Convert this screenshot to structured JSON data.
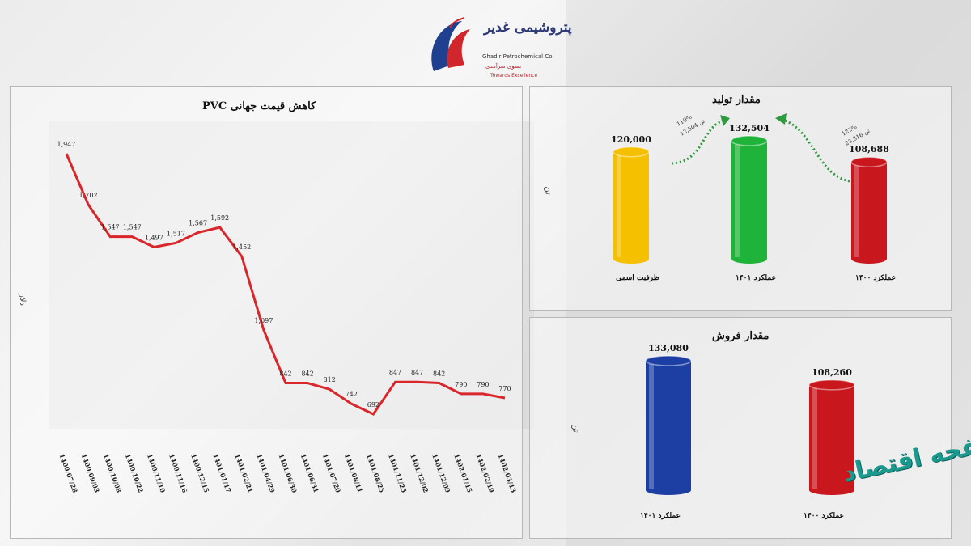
{
  "logo": {
    "name_fa": "پتروشیمی غدیر",
    "name_en": "Ghadir Petrochemical Co.",
    "tagline_fa": "بسوی سرآمدی",
    "tagline_en": "Towards Excellence",
    "colors": {
      "blue": "#1f3f8f",
      "red": "#d0262c"
    }
  },
  "pvc": {
    "title": "کاهش قیمت جهانی PVC",
    "unit": "دلار",
    "line_color": "#d9262b"
  },
  "production": {
    "title": "مقدار تولید",
    "unit": "تن",
    "ann1": {
      "pct": "110%",
      "val": "12,504",
      "unit": "تن"
    },
    "ann2": {
      "pct": "122%",
      "val": "23,816",
      "unit": "تن"
    }
  },
  "sales": {
    "title": "مقدار فروش",
    "unit": "تن"
  },
  "watermark": "صفحه اقتصاد",
  "chart_data": [
    {
      "type": "line",
      "title": "کاهش قیمت جهانی PVC",
      "ylabel": "دلار",
      "x": [
        "1400/07/28",
        "1400/09/03",
        "1400/10/08",
        "1400/10/22",
        "1400/11/10",
        "1400/11/16",
        "1400/12/15",
        "1401/01/17",
        "1401/02/21",
        "1401/04/29",
        "1401/06/30",
        "1401/06/31",
        "1401/07/20",
        "1401/08/11",
        "1401/08/25",
        "1401/11/25",
        "1401/12/02",
        "1401/12/09",
        "1402/01/15",
        "1402/02/19",
        "1402/03/13"
      ],
      "values": [
        1947,
        1702,
        1547,
        1547,
        1497,
        1517,
        1567,
        1592,
        1452,
        1097,
        842,
        842,
        812,
        742,
        692,
        847,
        847,
        842,
        790,
        790,
        770
      ],
      "labels": [
        "1,947",
        "1,702",
        "1,547",
        "1,547",
        "1,497",
        "1,517",
        "1,567",
        "1,592",
        "1,452",
        "1,097",
        "842",
        "842",
        "812",
        "742",
        "692",
        "847",
        "847",
        "842",
        "790",
        "790",
        "770"
      ]
    },
    {
      "type": "bar",
      "title": "مقدار تولید",
      "ylabel": "تن",
      "categories": [
        "ظرفیت اسمی",
        "عملکرد ۱۴۰۱",
        "عملکرد ۱۴۰۰"
      ],
      "values": [
        120000,
        132504,
        108688
      ],
      "labels": [
        "120,000",
        "132,504",
        "108,688"
      ],
      "colors": [
        "#f5c000",
        "#1fb33a",
        "#c8171d"
      ]
    },
    {
      "type": "bar",
      "title": "مقدار فروش",
      "ylabel": "تن",
      "categories": [
        "عملکرد ۱۴۰۱",
        "عملکرد ۱۴۰۰"
      ],
      "values": [
        133080,
        108260
      ],
      "labels": [
        "133,080",
        "108,260"
      ],
      "colors": [
        "#1d3fa3",
        "#c8171d"
      ]
    }
  ]
}
